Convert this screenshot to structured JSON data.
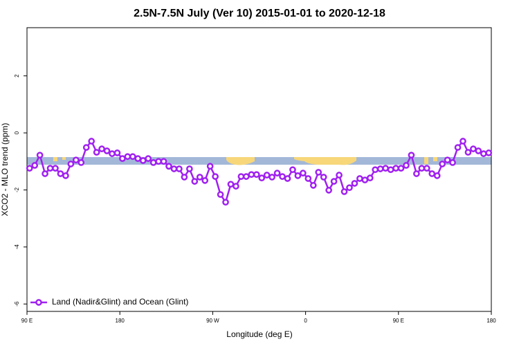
{
  "chart_data": {
    "type": "line",
    "title": "2.5N-7.5N July (Ver 10)   2015-01-01 to 2020-12-18",
    "x_label": "Longitude (deg E)",
    "y_label": "XCO2 - MLO trend (ppm)",
    "xlim": [
      90,
      540
    ],
    "ylim": [
      -6.26,
      3.69
    ],
    "xticks": [
      {
        "value": 90,
        "label": "90 E"
      },
      180,
      {
        "value": 270,
        "label": "90 W"
      },
      {
        "value": 360,
        "label": "0"
      },
      {
        "value": 450,
        "label": "90 E"
      },
      180
    ],
    "yticks": [
      2,
      0,
      -2,
      -4,
      -6
    ],
    "legend": "bottom-left",
    "x": [
      92.5,
      97.5,
      102.5,
      107.5,
      112.5,
      117.5,
      122.5,
      127.5,
      132.5,
      137.5,
      142.5,
      147.5,
      152.5,
      157.5,
      162.5,
      167.5,
      172.5,
      177.5,
      182.5,
      187.5,
      192.5,
      197.5,
      202.5,
      207.5,
      212.5,
      217.5,
      222.5,
      227.5,
      232.5,
      237.5,
      242.5,
      247.5,
      252.5,
      257.5,
      262.5,
      267.5,
      272.5,
      277.5,
      282.5,
      287.5,
      292.5,
      297.5,
      302.5,
      307.5,
      312.5,
      317.5,
      322.5,
      327.5,
      332.5,
      337.5,
      342.5,
      347.5,
      352.5,
      357.5,
      362.5,
      367.5,
      372.5,
      377.5,
      382.5,
      387.5,
      392.5,
      397.5,
      402.5,
      407.5,
      412.5,
      417.5,
      422.5,
      427.5,
      432.5,
      437.5,
      442.5,
      447.5,
      452.5,
      457.5,
      462.5,
      467.5,
      472.5,
      477.5,
      482.5,
      487.5,
      492.5,
      497.5,
      502.5,
      507.5,
      512.5,
      517.5,
      522.5,
      527.5,
      532.5,
      537.5
    ],
    "series": [
      {
        "name": "Land (Nadir&Glint) and Ocean (Glint)",
        "color": "#a020f0",
        "values": [
          -1.24,
          -1.14,
          -0.78,
          -1.43,
          -1.24,
          -1.24,
          -1.43,
          -1.5,
          -1.09,
          -0.95,
          -1.04,
          -0.51,
          -0.29,
          -0.68,
          -0.56,
          -0.63,
          -0.73,
          -0.7,
          -0.9,
          -0.83,
          -0.83,
          -0.9,
          -0.97,
          -0.9,
          -1.04,
          -1.0,
          -1.0,
          -1.17,
          -1.26,
          -1.26,
          -1.55,
          -1.26,
          -1.7,
          -1.55,
          -1.67,
          -1.17,
          -1.53,
          -2.16,
          -2.43,
          -1.8,
          -1.87,
          -1.53,
          -1.53,
          -1.46,
          -1.46,
          -1.58,
          -1.48,
          -1.55,
          -1.41,
          -1.53,
          -1.6,
          -1.29,
          -1.5,
          -1.41,
          -1.6,
          -1.84,
          -1.38,
          -1.55,
          -2.01,
          -1.7,
          -1.48,
          -2.06,
          -1.92,
          -1.77,
          -1.6,
          -1.65,
          -1.58,
          -1.29,
          -1.26,
          -1.24,
          -1.29,
          -1.24,
          -1.24,
          -1.14,
          -0.78,
          -1.43,
          -1.24,
          -1.24,
          -1.43,
          -1.5,
          -1.09,
          -0.95,
          -1.04,
          -0.51,
          -0.29,
          -0.68,
          -0.56,
          -0.63,
          -0.73,
          -0.7
        ]
      }
    ]
  }
}
